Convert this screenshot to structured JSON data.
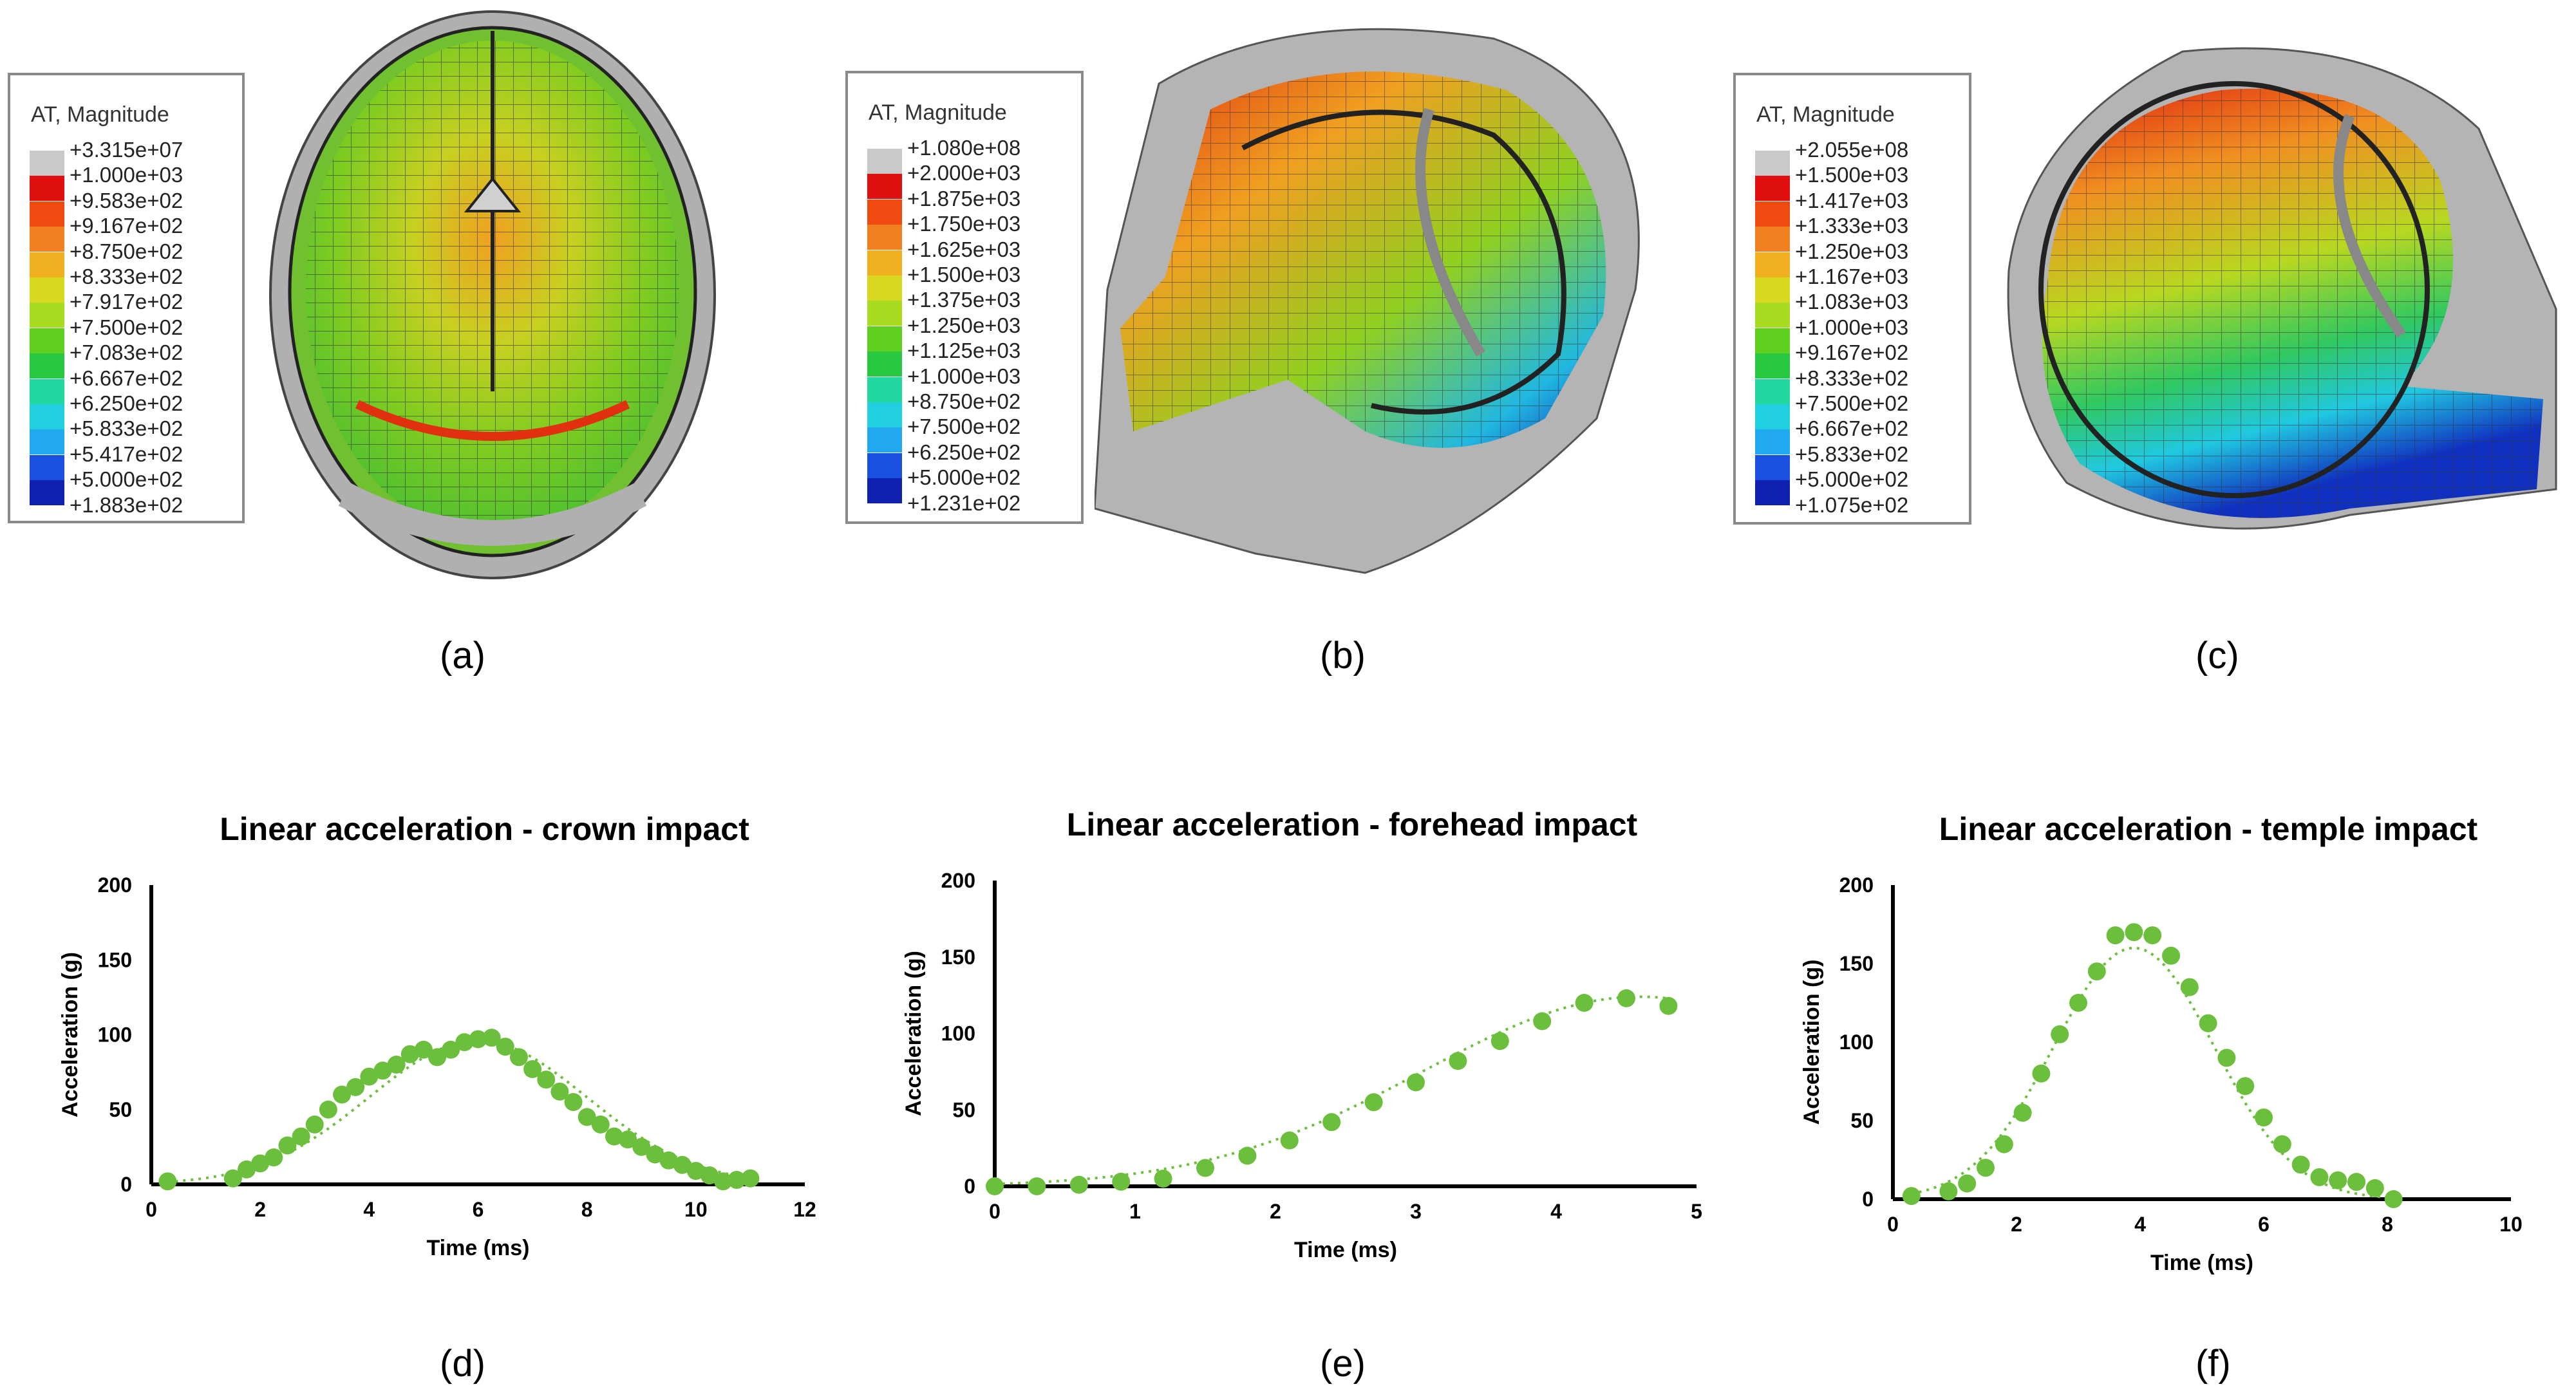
{
  "panels": {
    "a": {
      "label": "(a)",
      "legend": {
        "title": "AT, Magnitude",
        "levels": [
          "+3.315e+07",
          "+1.000e+03",
          "+9.583e+02",
          "+9.167e+02",
          "+8.750e+02",
          "+8.333e+02",
          "+7.917e+02",
          "+7.500e+02",
          "+7.083e+02",
          "+6.667e+02",
          "+6.250e+02",
          "+5.833e+02",
          "+5.417e+02",
          "+5.000e+02",
          "+1.883e+02"
        ]
      }
    },
    "b": {
      "label": "(b)",
      "legend": {
        "title": "AT, Magnitude",
        "levels": [
          "+1.080e+08",
          "+2.000e+03",
          "+1.875e+03",
          "+1.750e+03",
          "+1.625e+03",
          "+1.500e+03",
          "+1.375e+03",
          "+1.250e+03",
          "+1.125e+03",
          "+1.000e+03",
          "+8.750e+02",
          "+7.500e+02",
          "+6.250e+02",
          "+5.000e+02",
          "+1.231e+02"
        ]
      }
    },
    "c": {
      "label": "(c)",
      "legend": {
        "title": "AT, Magnitude",
        "levels": [
          "+2.055e+08",
          "+1.500e+03",
          "+1.417e+03",
          "+1.333e+03",
          "+1.250e+03",
          "+1.167e+03",
          "+1.083e+03",
          "+1.000e+03",
          "+9.167e+02",
          "+8.333e+02",
          "+7.500e+02",
          "+6.667e+02",
          "+5.833e+02",
          "+5.000e+02",
          "+1.075e+02"
        ]
      }
    },
    "d": {
      "label": "(d)"
    },
    "e": {
      "label": "(e)"
    },
    "f": {
      "label": "(f)"
    }
  },
  "colors": {
    "swatches": [
      "#c9c9c9",
      "#e01010",
      "#f04a10",
      "#f08020",
      "#f0b020",
      "#d8d820",
      "#a8dc20",
      "#60d020",
      "#28c840",
      "#20d8a0",
      "#20d0e0",
      "#20a8f0",
      "#1a50e0",
      "#1020b0",
      "#404040"
    ],
    "series": "#6cbf3c",
    "axis": "#000000"
  },
  "chart_data": [
    {
      "type": "scatter",
      "title": "Linear acceleration - crown impact",
      "xlabel": "Time (ms)",
      "ylabel": "Acceleration (g)",
      "xlim": [
        0,
        12
      ],
      "ylim": [
        0,
        200
      ],
      "xticks": [
        "0",
        "2",
        "4",
        "6",
        "8",
        "10",
        "12"
      ],
      "yticks": [
        "0",
        "50",
        "100",
        "150",
        "200"
      ],
      "trendline": "dotted",
      "x": [
        0.3,
        1.5,
        1.75,
        2.0,
        2.25,
        2.5,
        2.75,
        3.0,
        3.25,
        3.5,
        3.75,
        4.0,
        4.25,
        4.5,
        4.75,
        5.0,
        5.25,
        5.5,
        5.75,
        6.0,
        6.25,
        6.5,
        6.75,
        7.0,
        7.25,
        7.5,
        7.75,
        8.0,
        8.25,
        8.5,
        8.75,
        9.0,
        9.25,
        9.5,
        9.75,
        10.0,
        10.25,
        10.5,
        10.75,
        11.0
      ],
      "y": [
        2,
        4,
        10,
        14,
        18,
        26,
        32,
        40,
        50,
        60,
        65,
        72,
        76,
        80,
        87,
        90,
        85,
        90,
        95,
        97,
        98,
        92,
        85,
        77,
        70,
        62,
        55,
        45,
        40,
        32,
        30,
        25,
        20,
        16,
        13,
        9,
        6,
        2,
        3,
        4
      ]
    },
    {
      "type": "scatter",
      "title": "Linear acceleration - forehead impact",
      "xlabel": "Time (ms)",
      "ylabel": "Acceleration (g)",
      "xlim": [
        0,
        5
      ],
      "ylim": [
        0,
        200
      ],
      "xticks": [
        "0",
        "1",
        "2",
        "3",
        "4",
        "5"
      ],
      "yticks": [
        "0",
        "50",
        "100",
        "150",
        "200"
      ],
      "trendline": "dotted",
      "x": [
        0,
        0.3,
        0.6,
        0.9,
        1.2,
        1.5,
        1.8,
        2.1,
        2.4,
        2.7,
        3.0,
        3.3,
        3.6,
        3.9,
        4.2,
        4.5,
        4.8
      ],
      "y": [
        0,
        0,
        1,
        3,
        5,
        12,
        20,
        30,
        42,
        55,
        68,
        82,
        95,
        108,
        120,
        123,
        118
      ]
    },
    {
      "type": "scatter",
      "title": "Linear acceleration - temple impact",
      "xlabel": "Time (ms)",
      "ylabel": "Acceleration (g)",
      "xlim": [
        0,
        10
      ],
      "ylim": [
        0,
        200
      ],
      "xticks": [
        "0",
        "2",
        "4",
        "6",
        "8",
        "10"
      ],
      "yticks": [
        "0",
        "50",
        "100",
        "150",
        "200"
      ],
      "trendline": "dotted",
      "x": [
        0.3,
        0.9,
        1.2,
        1.5,
        1.8,
        2.1,
        2.4,
        2.7,
        3.0,
        3.3,
        3.6,
        3.9,
        4.2,
        4.5,
        4.8,
        5.1,
        5.4,
        5.7,
        6.0,
        6.3,
        6.6,
        6.9,
        7.2,
        7.5,
        7.8,
        8.1
      ],
      "y": [
        2,
        5,
        10,
        20,
        35,
        55,
        80,
        105,
        125,
        145,
        168,
        170,
        168,
        155,
        135,
        112,
        90,
        72,
        52,
        35,
        22,
        14,
        12,
        11,
        7,
        0
      ]
    }
  ]
}
